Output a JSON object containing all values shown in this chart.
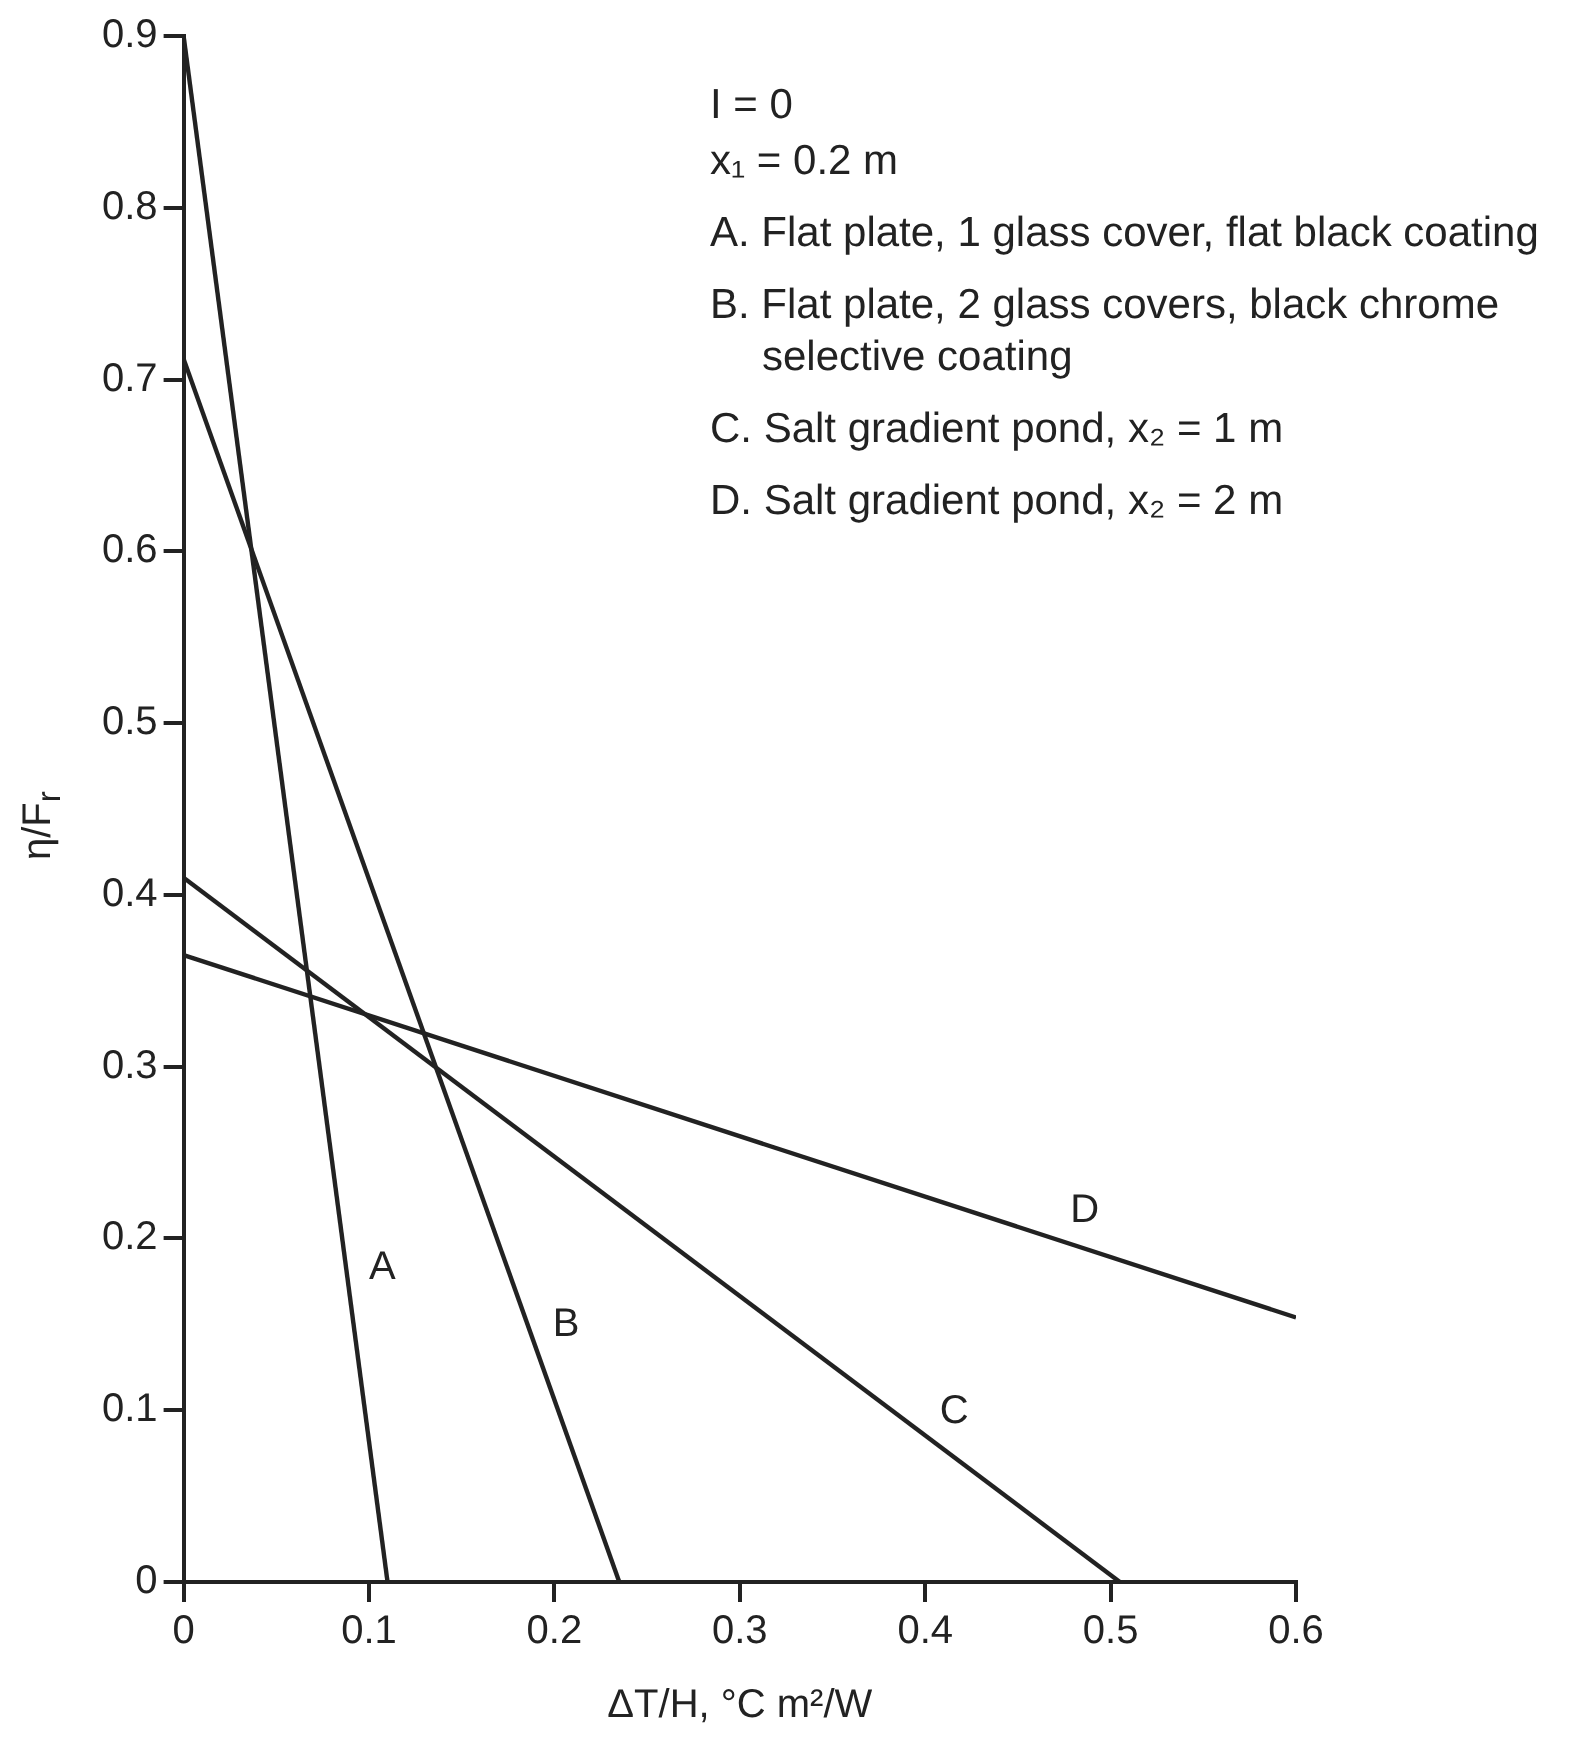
{
  "chart_data": {
    "type": "line",
    "xlabel": "ΔT/H, °C m²/W",
    "ylabel": "η/F$_{r}$",
    "xlim": [
      0,
      0.6
    ],
    "xticks": [
      0,
      0.1,
      0.2,
      0.3,
      0.4,
      0.5,
      0.6
    ],
    "ylim": [
      0,
      0.9
    ],
    "yticks": [
      0,
      0.1,
      0.2,
      0.3,
      0.4,
      0.5,
      0.6,
      0.7,
      0.8,
      0.9
    ],
    "grid": false,
    "legend": false,
    "marker": "none",
    "line_style": "solid",
    "series": [
      {
        "name": "A",
        "color": "#222222",
        "x": [
          0,
          0.11
        ],
        "values": [
          0.9,
          0
        ]
      },
      {
        "name": "B",
        "color": "#222222",
        "x": [
          0,
          0.235
        ],
        "values": [
          0.712,
          0
        ]
      },
      {
        "name": "C",
        "color": "#222222",
        "x": [
          0,
          0.505
        ],
        "values": [
          0.41,
          0
        ]
      },
      {
        "name": "D",
        "color": "#222222",
        "x": [
          0,
          0.6
        ],
        "values": [
          0.365,
          0.154
        ]
      }
    ],
    "annotations": [
      "I = 0",
      "x₁ = 0.2 m",
      "A. Flat plate, 1 glass cover, flat black coating",
      "B. Flat plate, 2 glass covers, black chrome selective coating",
      "C. Salt gradient pond, x₂ = 1 m",
      "D. Salt gradient pond, x₂ = 2 m"
    ]
  }
}
